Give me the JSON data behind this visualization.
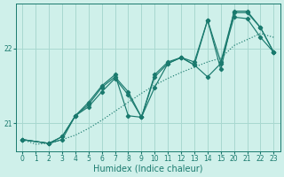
{
  "xlabel": "Humidex (Indice chaleur)",
  "background_color": "#cff0ea",
  "line_color": "#1a7a6e",
  "grid_color": "#a8d8d0",
  "text_color": "#1a7a6e",
  "yticks": [
    21,
    22
  ],
  "ylim": [
    20.62,
    22.6
  ],
  "tick_labels": [
    "0",
    "1",
    "2",
    "3",
    "4",
    "5",
    "6",
    "7",
    "8",
    "9",
    "10",
    "11",
    "12",
    "13",
    "14",
    "15",
    "20",
    "21",
    "22",
    "23"
  ],
  "n_ticks": 20,
  "series": [
    {
      "xi": [
        0,
        1,
        2,
        3,
        4,
        5,
        6,
        7,
        8,
        9,
        10,
        11,
        12,
        13,
        14,
        15,
        16,
        17,
        18,
        19
      ],
      "y": [
        20.78,
        20.72,
        20.73,
        20.78,
        20.84,
        20.93,
        21.04,
        21.16,
        21.28,
        21.4,
        21.51,
        21.6,
        21.68,
        21.75,
        21.82,
        21.87,
        22.04,
        22.12,
        22.2,
        22.15
      ]
    },
    {
      "xi": [
        0,
        2,
        3,
        4,
        5,
        6,
        7,
        8,
        9,
        10,
        11,
        12,
        13,
        14,
        15,
        16,
        17,
        18,
        19
      ],
      "y": [
        20.78,
        20.73,
        20.78,
        21.1,
        21.28,
        21.5,
        21.65,
        21.1,
        21.08,
        21.65,
        21.82,
        21.88,
        21.78,
        21.62,
        21.8,
        22.42,
        22.4,
        22.15,
        21.95
      ]
    },
    {
      "xi": [
        0,
        2,
        3,
        4,
        5,
        6,
        7,
        8,
        9,
        10,
        11,
        12,
        13,
        14,
        15,
        16,
        17,
        18,
        19
      ],
      "y": [
        20.78,
        20.73,
        20.82,
        21.1,
        21.25,
        21.48,
        21.62,
        21.42,
        21.08,
        21.62,
        21.8,
        21.88,
        21.78,
        22.38,
        21.72,
        22.5,
        22.5,
        22.28,
        21.95
      ]
    },
    {
      "xi": [
        0,
        2,
        3,
        4,
        5,
        6,
        7,
        8,
        9,
        10,
        11,
        12,
        13,
        14,
        15,
        16,
        17,
        18,
        19
      ],
      "y": [
        20.78,
        20.73,
        20.82,
        21.1,
        21.22,
        21.42,
        21.6,
        21.38,
        21.08,
        21.48,
        21.8,
        21.88,
        21.82,
        22.38,
        21.82,
        22.48,
        22.48,
        22.28,
        21.95
      ]
    }
  ]
}
